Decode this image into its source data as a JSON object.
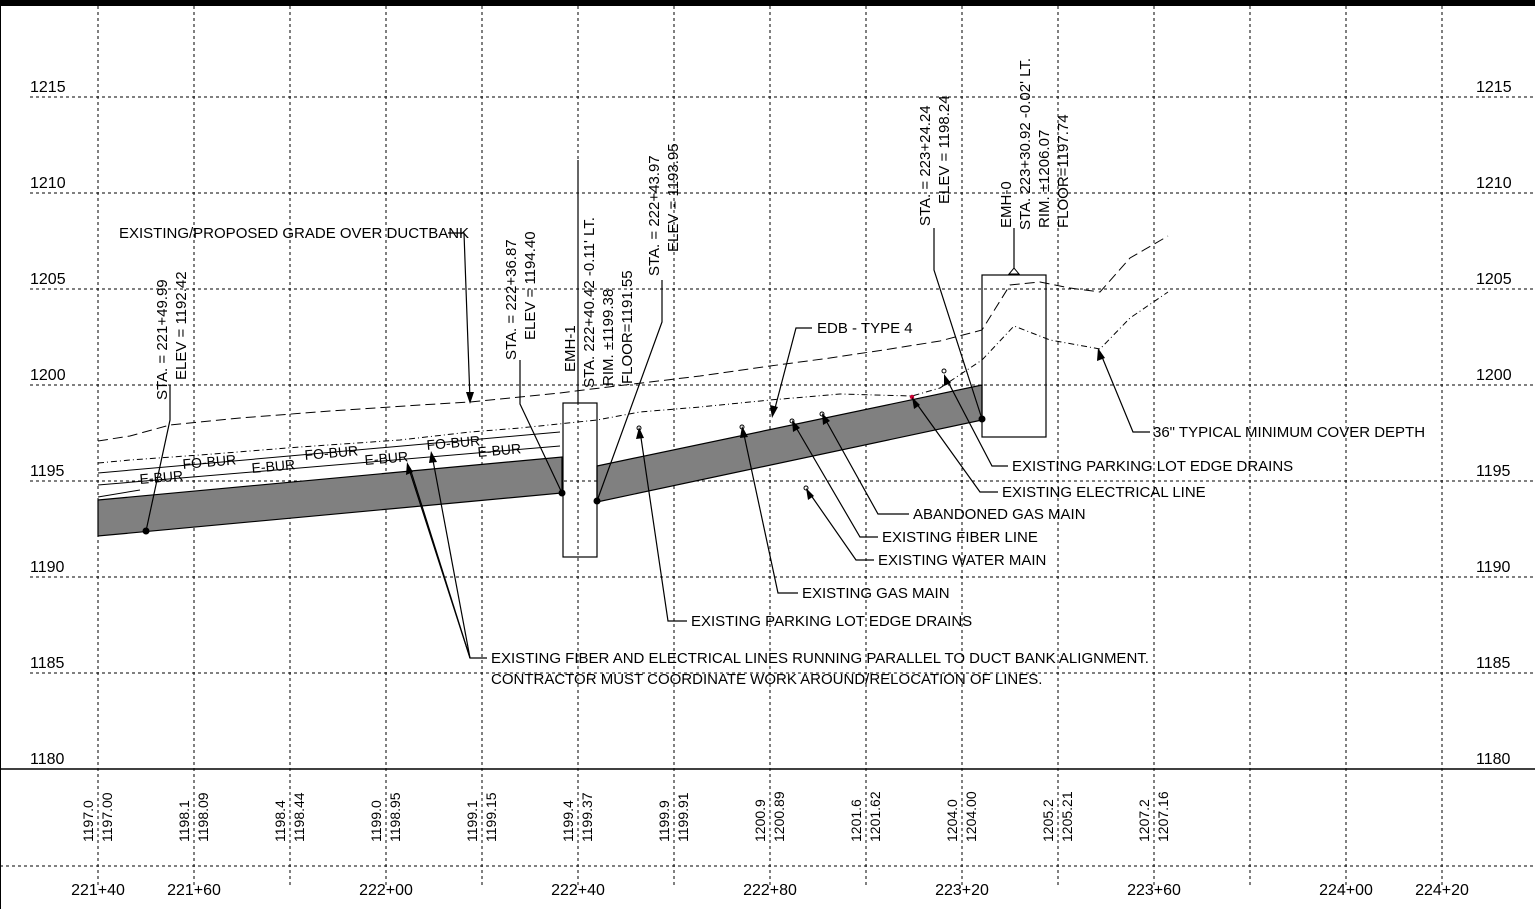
{
  "elevation_labels": {
    "e1215": "1215",
    "e1210": "1210",
    "e1205": "1205",
    "e1200": "1200",
    "e1195": "1195",
    "e1190": "1190",
    "e1185": "1185",
    "e1180": "1180"
  },
  "stations": {
    "s22140": "221+40",
    "s22160": "221+60",
    "s22200": "222+00",
    "s22240": "222+40",
    "s22280": "222+80",
    "s22320": "223+20",
    "s22360": "223+60",
    "s22400": "224+00",
    "s22420": "224+20"
  },
  "existing_elev": {
    "a": "1197.0",
    "b": "1198.1",
    "c": "1198.4",
    "d": "1199.0",
    "e": "1199.1",
    "f": "1199.4",
    "g": "1199.9",
    "h": "1200.9",
    "i": "1201.6",
    "j": "1204.0",
    "k": "1205.2",
    "l": "1207.2"
  },
  "proposed_elev": {
    "a": "1197.00",
    "b": "1198.09",
    "c": "1198.44",
    "d": "1198.95",
    "e": "1199.15",
    "f": "1199.37",
    "g": "1199.91",
    "h": "1200.89",
    "i": "1201.62",
    "j": "1204.00",
    "k": "1205.21",
    "l": "1207.16"
  },
  "vertical_callouts": {
    "p1_sta": "STA. = 221+49.99",
    "p1_elev": "ELEV = 1192.42",
    "p2_sta": "STA. = 222+36.87",
    "p2_elev": "ELEV = 1194.40",
    "emh1_name": "EMH-1",
    "emh1_sta": "STA. 222+40.42 -0.11' LT.",
    "emh1_rim": "RIM. ±1199.38",
    "emh1_floor": "FLOOR=1191.55",
    "p3_sta": "STA. = 222+43.97",
    "p3_elev": "ELEV = 1193.95",
    "p4_sta": "STA. = 223+24.24",
    "p4_elev": "ELEV = 1198.24",
    "emh0_name": "EMH-0",
    "emh0_sta": "STA. 223+30.92 -0.02' LT.",
    "emh0_rim": "RIM. ±1206.07",
    "emh0_floor": "FLOOR=1197.74"
  },
  "line_labels": {
    "e_bur": "E-BUR",
    "fo_bur": "FO-BUR"
  },
  "notes": {
    "grade": "EXISTING/PROPOSED GRADE OVER DUCTBANK",
    "edb": "EDB - TYPE 4",
    "cover": "36\" TYPICAL MINIMUM COVER DEPTH",
    "drains_right": "EXISTING PARKING LOT EDGE DRAINS",
    "electrical": "EXISTING ELECTRICAL LINE",
    "abandoned_gas": "ABANDONED GAS MAIN",
    "fiber": "EXISTING FIBER LINE",
    "water": "EXISTING WATER MAIN",
    "gas": "EXISTING GAS MAIN",
    "drains_left": "EXISTING PARKING LOT EDGE DRAINS",
    "parallel_1": "EXISTING FIBER AND ELECTRICAL LINES RUNNING PARALLEL TO DUCT BANK ALIGNMENT.",
    "parallel_2": "CONTRACTOR MUST COORDINATE WORK AROUND/RELOCATION OF LINES."
  },
  "colors": {
    "ductbank_fill": "#808080",
    "utility_marker": "#cc0033"
  }
}
